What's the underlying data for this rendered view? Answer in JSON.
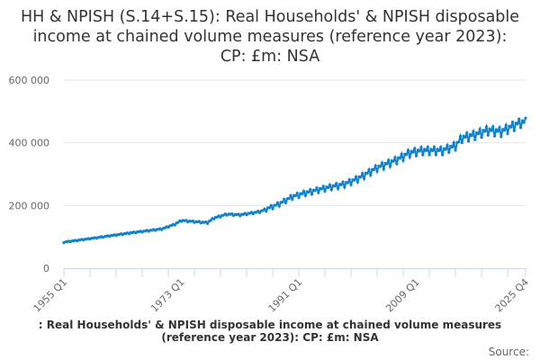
{
  "chart_data": {
    "type": "line",
    "title": "HH & NPISH (S.14+S.15): Real Households' & NPISH disposable income at chained volume measures (reference year 2023): CP: £m: NSA",
    "xlabel": "",
    "ylabel": "",
    "ylim": [
      0,
      600000
    ],
    "yticks": [
      0,
      200000,
      400000,
      600000
    ],
    "ytick_labels": [
      "0",
      "200 000",
      "400 000",
      "600 000"
    ],
    "xrange": [
      "1955 Q1",
      "2025 Q4"
    ],
    "xticks": [
      {
        "year": 1955,
        "q": 1,
        "label": "1955 Q1"
      },
      {
        "year": 1973,
        "q": 1,
        "label": "1973 Q1"
      },
      {
        "year": 1991,
        "q": 1,
        "label": "1991 Q1"
      },
      {
        "year": 2009,
        "q": 1,
        "label": "2009 Q1"
      },
      {
        "year": 2025,
        "q": 4,
        "label": "2025 Q4"
      }
    ],
    "series": [
      {
        "name": "Real Households' & NPISH disposable income at chained volume measures (reference year 2023)",
        "color": "#0F82CC",
        "annual_anchors": [
          [
            1955,
            83000
          ],
          [
            1960,
            97000
          ],
          [
            1965,
            112000
          ],
          [
            1970,
            125000
          ],
          [
            1972,
            140000
          ],
          [
            1973,
            152000
          ],
          [
            1974,
            150000
          ],
          [
            1977,
            145000
          ],
          [
            1978,
            160000
          ],
          [
            1980,
            172000
          ],
          [
            1982,
            170000
          ],
          [
            1985,
            180000
          ],
          [
            1988,
            205000
          ],
          [
            1990,
            228000
          ],
          [
            1992,
            240000
          ],
          [
            1995,
            255000
          ],
          [
            1998,
            268000
          ],
          [
            2000,
            285000
          ],
          [
            2003,
            320000
          ],
          [
            2006,
            345000
          ],
          [
            2008,
            368000
          ],
          [
            2010,
            375000
          ],
          [
            2013,
            375000
          ],
          [
            2015,
            390000
          ],
          [
            2016,
            415000
          ],
          [
            2018,
            425000
          ],
          [
            2020,
            440000
          ],
          [
            2022,
            435000
          ],
          [
            2024,
            455000
          ],
          [
            2025,
            465000
          ]
        ],
        "seasonal_pct": [
          -0.03,
          0.01,
          0.0,
          0.025
        ]
      }
    ],
    "grid": true,
    "legend": "none"
  },
  "caption": ": Real Households' & NPISH disposable income at chained volume measures (reference year 2023): CP: £m: NSA",
  "source": "Source:"
}
